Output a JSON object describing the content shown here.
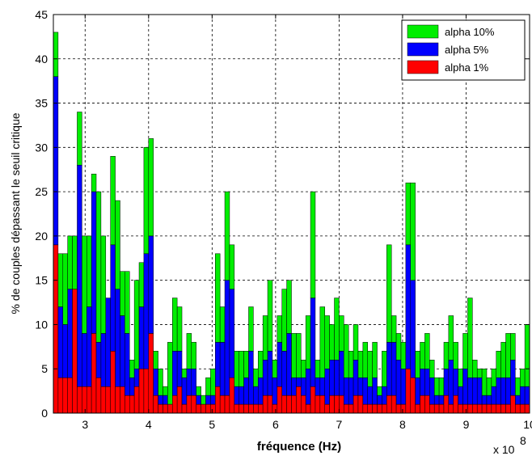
{
  "chart_data": {
    "type": "bar",
    "stacked": true,
    "xlabel": "fréquence (Hz)",
    "ylabel": "% de couples dépassant le seuil critique",
    "x_multiplier_label": "x 10",
    "x_multiplier_exp": "8",
    "xlim": [
      2.5,
      10.0
    ],
    "ylim": [
      0,
      45
    ],
    "xticks": [
      "3",
      "4",
      "5",
      "6",
      "7",
      "8",
      "9",
      "10"
    ],
    "yticks": [
      "0",
      "5",
      "10",
      "15",
      "20",
      "25",
      "30",
      "35",
      "40",
      "45"
    ],
    "grid": true,
    "legend_position": "top-right",
    "bin_width": 0.075,
    "x": [
      2.5375,
      2.6125,
      2.6875,
      2.7625,
      2.8375,
      2.9125,
      2.9875,
      3.0625,
      3.1375,
      3.2125,
      3.2875,
      3.3625,
      3.4375,
      3.5125,
      3.5875,
      3.6625,
      3.7375,
      3.8125,
      3.8875,
      3.9625,
      4.0375,
      4.1125,
      4.1875,
      4.2625,
      4.3375,
      4.4125,
      4.4875,
      4.5625,
      4.6375,
      4.7125,
      4.7875,
      4.8625,
      4.9375,
      5.0125,
      5.0875,
      5.1625,
      5.2375,
      5.3125,
      5.3875,
      5.4625,
      5.5375,
      5.6125,
      5.6875,
      5.7625,
      5.8375,
      5.9125,
      5.9875,
      6.0625,
      6.1375,
      6.2125,
      6.2875,
      6.3625,
      6.4375,
      6.5125,
      6.5875,
      6.6625,
      6.7375,
      6.8125,
      6.8875,
      6.9625,
      7.0375,
      7.1125,
      7.1875,
      7.2625,
      7.3375,
      7.4125,
      7.4875,
      7.5625,
      7.6375,
      7.7125,
      7.7875,
      7.8625,
      7.9375,
      8.0125,
      8.0875,
      8.1625,
      8.2375,
      8.3125,
      8.3875,
      8.4625,
      8.5375,
      8.6125,
      8.6875,
      8.7625,
      8.8375,
      8.9125,
      8.9875,
      9.0625,
      9.1375,
      9.2125,
      9.2875,
      9.3625,
      9.4375,
      9.5125,
      9.5875,
      9.6625,
      9.7375,
      9.8125,
      9.8875,
      9.9625
    ],
    "series": [
      {
        "name": "alpha 1%",
        "color": "#ff0000",
        "values": [
          19,
          4,
          4,
          4,
          14,
          3,
          3,
          3,
          9,
          4,
          3,
          3,
          7,
          3,
          3,
          2,
          2,
          3,
          5,
          5,
          9,
          2,
          1,
          1,
          1,
          2,
          3,
          1,
          2,
          2,
          1,
          1,
          1,
          1,
          3,
          2,
          2,
          4,
          1,
          1,
          1,
          1,
          1,
          1,
          2,
          2,
          1,
          3,
          2,
          2,
          2,
          3,
          2,
          1,
          3,
          2,
          2,
          1,
          2,
          2,
          2,
          1,
          1,
          2,
          2,
          1,
          1,
          1,
          1,
          1,
          2,
          2,
          1,
          1,
          5,
          4,
          1,
          2,
          2,
          1,
          1,
          1,
          2,
          1,
          2,
          1,
          1,
          1,
          1,
          1,
          1,
          1,
          1,
          1,
          1,
          1,
          2,
          1,
          1,
          1
        ]
      },
      {
        "name": "alpha 5%",
        "color": "#0000ff",
        "values": [
          19,
          8,
          6,
          10,
          0,
          25,
          6,
          9,
          16,
          4,
          6,
          10,
          12,
          11,
          8,
          7,
          2,
          2,
          7,
          13,
          11,
          3,
          1,
          1,
          0,
          5,
          4,
          3,
          3,
          3,
          1,
          0,
          1,
          1,
          5,
          6,
          13,
          10,
          2,
          2,
          3,
          6,
          2,
          3,
          4,
          5,
          3,
          5,
          5,
          7,
          2,
          1,
          2,
          4,
          10,
          2,
          2,
          4,
          4,
          4,
          5,
          3,
          3,
          4,
          2,
          3,
          2,
          3,
          1,
          2,
          6,
          6,
          5,
          4,
          14,
          11,
          3,
          3,
          3,
          3,
          1,
          1,
          3,
          5,
          3,
          2,
          4,
          3,
          3,
          3,
          1,
          1,
          2,
          3,
          3,
          3,
          4,
          1,
          2,
          2
        ]
      },
      {
        "name": "alpha 10%",
        "color": "#00ee00",
        "values": [
          5,
          6,
          8,
          6,
          6,
          6,
          11,
          8,
          2,
          17,
          11,
          0,
          10,
          10,
          5,
          7,
          2,
          10,
          5,
          12,
          11,
          2,
          3,
          1,
          7,
          6,
          5,
          1,
          4,
          3,
          1,
          1,
          2,
          3,
          10,
          4,
          10,
          5,
          4,
          4,
          3,
          5,
          2,
          3,
          5,
          8,
          2,
          3,
          7,
          6,
          5,
          5,
          2,
          6,
          12,
          2,
          8,
          6,
          4,
          7,
          4,
          6,
          3,
          4,
          3,
          4,
          4,
          4,
          1,
          4,
          11,
          3,
          3,
          3,
          7,
          11,
          3,
          3,
          4,
          2,
          2,
          2,
          3,
          5,
          3,
          2,
          4,
          9,
          2,
          1,
          3,
          2,
          2,
          3,
          4,
          5,
          3,
          2,
          2,
          7
        ]
      }
    ]
  }
}
